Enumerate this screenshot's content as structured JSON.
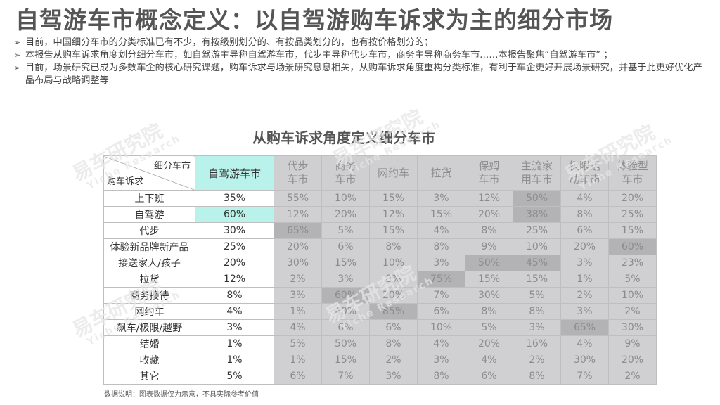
{
  "title": "自驾游车市概念定义：以自驾游购车诉求为主的细分市场",
  "bullets": [
    "目前，中国细分车市的分类标准已有不少，有按级别划分的、有按品类划分的，也有按价格划分的；",
    "本报告从购车诉求角度划分细分车市，如自驾游主导称自驾游车市，代步主导称代步车市，商务主导称商务车市……本报告聚焦“自驾游车市”  ；",
    "目前，场景研究已成为多数车企的核心研究课题，购车诉求与场景研究息息相关，从购车诉求角度重构分类标准，有利于车企更好开展场景研究，并基于此更好优化产品布局与战略调整等"
  ],
  "bullet_mark": "➢",
  "table_title": "从购车诉求角度定义细分车市",
  "corner": {
    "top": "细分车市",
    "bottom": "购车诉求"
  },
  "columns": [
    "自驾游车市",
    "代步\n车市",
    "商务\n车市",
    "网约车",
    "拉货",
    "保姆\n车市",
    "主流家\n用车市",
    "极限运\n动车市",
    "体验型\n车市"
  ],
  "rows": [
    {
      "label": "上下班",
      "values": [
        "35%",
        "55%",
        "10%",
        "15%",
        "3%",
        "12%",
        "50%",
        "4%",
        "20%"
      ],
      "dark": [
        6
      ]
    },
    {
      "label": "自驾游",
      "values": [
        "60%",
        "12%",
        "20%",
        "12%",
        "15%",
        "20%",
        "38%",
        "8%",
        "25%"
      ],
      "dark": [
        6
      ],
      "highlight": true
    },
    {
      "label": "代步",
      "values": [
        "30%",
        "65%",
        "5%",
        "15%",
        "4%",
        "8%",
        "25%",
        "6%",
        "15%"
      ],
      "dark": [
        1
      ]
    },
    {
      "label": "体验新品牌新产品",
      "values": [
        "25%",
        "20%",
        "6%",
        "8%",
        "8%",
        "9%",
        "10%",
        "20%",
        "60%"
      ],
      "dark": [
        8
      ]
    },
    {
      "label": "接送家人/孩子",
      "values": [
        "20%",
        "30%",
        "15%",
        "10%",
        "3%",
        "50%",
        "45%",
        "3%",
        "23%"
      ],
      "dark": [
        5,
        6
      ]
    },
    {
      "label": "拉货",
      "values": [
        "12%",
        "2%",
        "3%",
        "8%",
        "75%",
        "15%",
        "15%",
        "1%",
        "5%"
      ],
      "dark": [
        4
      ]
    },
    {
      "label": "商务接待",
      "values": [
        "8%",
        "3%",
        "60%",
        "20%",
        "7%",
        "30%",
        "5%",
        "2%",
        "10%"
      ],
      "dark": [
        2
      ]
    },
    {
      "label": "网约车",
      "values": [
        "4%",
        "1%",
        "40%",
        "85%",
        "6%",
        "8%",
        "8%",
        "3%",
        "2%"
      ],
      "dark": [
        3
      ]
    },
    {
      "label": "飙车/极限/越野",
      "values": [
        "3%",
        "4%",
        "6%",
        "6%",
        "10%",
        "5%",
        "3%",
        "65%",
        "30%"
      ],
      "dark": [
        7
      ]
    },
    {
      "label": "结婚",
      "values": [
        "1%",
        "5%",
        "50%",
        "8%",
        "4%",
        "20%",
        "16%",
        "4%",
        "9%"
      ],
      "dark": []
    },
    {
      "label": "收藏",
      "values": [
        "1%",
        "1%",
        "15%",
        "2%",
        "3%",
        "4%",
        "2%",
        "30%",
        "20%"
      ],
      "dark": []
    },
    {
      "label": "其它",
      "values": [
        "5%",
        "6%",
        "7%",
        "3%",
        "8%",
        "6%",
        "8%",
        "7%",
        "2%"
      ],
      "dark": []
    }
  ],
  "note": "数据说明：图表数据仅为示意，不具实际参考价值",
  "watermark": {
    "cn": "易车研究院",
    "en": "Yiche Research"
  },
  "colors": {
    "highlight": "#b8f2ea",
    "gray_cell": "#d0d0d2",
    "gray_dark": "#b3b3b5",
    "gray_text": "#8c8c8c"
  }
}
